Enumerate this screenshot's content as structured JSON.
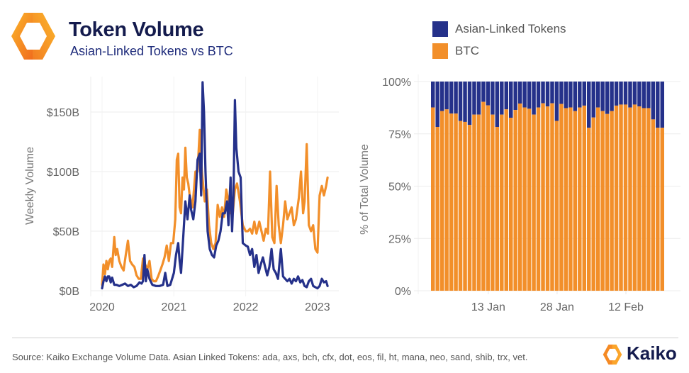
{
  "header": {
    "title": "Token Volume",
    "subtitle": "Asian-Linked Tokens vs BTC"
  },
  "legend": {
    "items": [
      {
        "label": "Asian-Linked Tokens",
        "color": "#25318a"
      },
      {
        "label": "BTC",
        "color": "#f28f2a"
      }
    ]
  },
  "footer": {
    "source": "Source: Kaiko Exchange Volume Data. Asian Linked Tokens: ada, axs, bch, cfx, dot, eos, fil, ht, mana, neo, sand, shib, trx, vet.",
    "brand": "Kaiko"
  },
  "chart_data": [
    {
      "type": "line",
      "title": "",
      "xlabel": "",
      "ylabel": "Weekly Volume",
      "xlim": [
        2019.95,
        2023.25
      ],
      "ylim": [
        0,
        180
      ],
      "x_ticks": [
        2020,
        2021,
        2022,
        2023
      ],
      "x_tick_labels": [
        "2020",
        "2021",
        "2022",
        "2023"
      ],
      "y_ticks": [
        0,
        50,
        100,
        150
      ],
      "y_tick_labels": [
        "$0B",
        "$50B",
        "$100B",
        "$150B"
      ],
      "grid": true,
      "series": [
        {
          "name": "BTC",
          "color": "#f28f2a",
          "x": [
            2020.0,
            2020.02,
            2020.04,
            2020.06,
            2020.08,
            2020.1,
            2020.12,
            2020.14,
            2020.17,
            2020.19,
            2020.21,
            2020.24,
            2020.27,
            2020.3,
            2020.33,
            2020.36,
            2020.39,
            2020.42,
            2020.45,
            2020.48,
            2020.51,
            2020.54,
            2020.57,
            2020.6,
            2020.63,
            2020.66,
            2020.69,
            2020.72,
            2020.75,
            2020.78,
            2020.81,
            2020.84,
            2020.87,
            2020.9,
            2020.93,
            2020.96,
            2020.99,
            2021.02,
            2021.04,
            2021.06,
            2021.08,
            2021.1,
            2021.12,
            2021.14,
            2021.16,
            2021.18,
            2021.2,
            2021.22,
            2021.26,
            2021.3,
            2021.33,
            2021.36,
            2021.39,
            2021.43,
            2021.46,
            2021.49,
            2021.52,
            2021.55,
            2021.58,
            2021.61,
            2021.64,
            2021.67,
            2021.7,
            2021.73,
            2021.76,
            2021.79,
            2021.82,
            2021.85,
            2021.88,
            2021.92,
            2021.96,
            2022.0,
            2022.03,
            2022.06,
            2022.09,
            2022.12,
            2022.15,
            2022.19,
            2022.22,
            2022.25,
            2022.28,
            2022.31,
            2022.34,
            2022.37,
            2022.4,
            2022.43,
            2022.46,
            2022.49,
            2022.52,
            2022.55,
            2022.58,
            2022.61,
            2022.64,
            2022.67,
            2022.7,
            2022.74,
            2022.77,
            2022.8,
            2022.82,
            2022.85,
            2022.88,
            2022.91,
            2022.94,
            2022.97,
            2023.0,
            2023.03,
            2023.06,
            2023.09,
            2023.12,
            2023.14
          ],
          "values": [
            5,
            22,
            14,
            25,
            18,
            25,
            27,
            20,
            45,
            30,
            35,
            25,
            20,
            17,
            30,
            42,
            25,
            22,
            20,
            13,
            10,
            10,
            27,
            22,
            18,
            25,
            10,
            8,
            8,
            12,
            17,
            22,
            28,
            38,
            25,
            40,
            40,
            60,
            110,
            115,
            70,
            65,
            95,
            85,
            120,
            95,
            90,
            80,
            70,
            100,
            100,
            135,
            100,
            75,
            85,
            55,
            40,
            35,
            40,
            72,
            62,
            70,
            62,
            85,
            75,
            65,
            65,
            85,
            90,
            75,
            55,
            50,
            50,
            52,
            48,
            58,
            48,
            58,
            50,
            42,
            52,
            48,
            100,
            45,
            40,
            88,
            55,
            40,
            55,
            75,
            60,
            65,
            70,
            55,
            60,
            78,
            100,
            65,
            75,
            123,
            55,
            50,
            55,
            35,
            32,
            80,
            88,
            80,
            88,
            95
          ]
        },
        {
          "name": "Asian-Linked Tokens",
          "color": "#25318a",
          "x": [
            2020.0,
            2020.02,
            2020.04,
            2020.06,
            2020.08,
            2020.1,
            2020.12,
            2020.14,
            2020.17,
            2020.2,
            2020.24,
            2020.28,
            2020.32,
            2020.36,
            2020.4,
            2020.44,
            2020.48,
            2020.52,
            2020.55,
            2020.57,
            2020.59,
            2020.61,
            2020.63,
            2020.66,
            2020.7,
            2020.75,
            2020.8,
            2020.85,
            2020.88,
            2020.91,
            2020.95,
            2021.0,
            2021.03,
            2021.06,
            2021.08,
            2021.1,
            2021.13,
            2021.16,
            2021.19,
            2021.22,
            2021.24,
            2021.27,
            2021.3,
            2021.33,
            2021.36,
            2021.38,
            2021.4,
            2021.42,
            2021.44,
            2021.47,
            2021.5,
            2021.53,
            2021.56,
            2021.59,
            2021.62,
            2021.65,
            2021.68,
            2021.71,
            2021.74,
            2021.76,
            2021.79,
            2021.81,
            2021.83,
            2021.85,
            2021.87,
            2021.9,
            2021.93,
            2021.96,
            2022.0,
            2022.03,
            2022.06,
            2022.09,
            2022.12,
            2022.15,
            2022.18,
            2022.21,
            2022.24,
            2022.27,
            2022.3,
            2022.33,
            2022.36,
            2022.39,
            2022.42,
            2022.45,
            2022.49,
            2022.52,
            2022.55,
            2022.58,
            2022.61,
            2022.64,
            2022.67,
            2022.7,
            2022.73,
            2022.76,
            2022.79,
            2022.82,
            2022.85,
            2022.88,
            2022.91,
            2022.94,
            2022.97,
            2023.0,
            2023.03,
            2023.06,
            2023.09,
            2023.12,
            2023.14
          ],
          "values": [
            2,
            8,
            12,
            8,
            12,
            12,
            7,
            11,
            5,
            5,
            4,
            5,
            6,
            4,
            5,
            3,
            4,
            7,
            6,
            8,
            30,
            8,
            18,
            10,
            5,
            4,
            4,
            5,
            15,
            4,
            5,
            15,
            30,
            40,
            25,
            15,
            45,
            75,
            60,
            80,
            68,
            60,
            75,
            110,
            115,
            80,
            175,
            150,
            100,
            50,
            35,
            30,
            28,
            38,
            42,
            50,
            65,
            65,
            75,
            55,
            95,
            50,
            80,
            160,
            120,
            100,
            95,
            40,
            38,
            37,
            30,
            35,
            20,
            30,
            15,
            22,
            28,
            20,
            13,
            20,
            35,
            18,
            15,
            10,
            35,
            12,
            10,
            8,
            10,
            6,
            10,
            8,
            12,
            7,
            9,
            4,
            3,
            8,
            10,
            4,
            3,
            2,
            4,
            10,
            7,
            8,
            4
          ]
        }
      ]
    },
    {
      "type": "bar",
      "stacked": true,
      "normalized": true,
      "title": "",
      "xlabel": "",
      "ylabel": "% of Total Volume",
      "ylim": [
        0,
        100
      ],
      "y_ticks": [
        0,
        25,
        50,
        75,
        100
      ],
      "y_tick_labels": [
        "0%",
        "25%",
        "50%",
        "75%",
        "100%"
      ],
      "x_tick_labels": [
        {
          "label": "13 Jan",
          "index": 12
        },
        {
          "label": "28 Jan",
          "index": 27
        },
        {
          "label": "12 Feb",
          "index": 42
        }
      ],
      "grid": true,
      "bar_count": 51,
      "series": [
        {
          "name": "BTC",
          "color": "#f28f2a",
          "values": [
            87.6,
            78.3,
            85.9,
            86.7,
            84.7,
            84.7,
            81.2,
            80.7,
            79.3,
            84.2,
            84.2,
            90.3,
            88.6,
            84.2,
            78.3,
            84.2,
            86.7,
            82.7,
            86.4,
            89.5,
            87.6,
            87.0,
            84.2,
            87.6,
            89.6,
            88.1,
            89.6,
            81.2,
            89.3,
            87.3,
            87.6,
            85.9,
            87.6,
            88.5,
            77.9,
            82.8,
            87.6,
            85.9,
            84.5,
            85.9,
            88.5,
            89.0,
            89.0,
            87.6,
            89.0,
            88.1,
            87.3,
            87.3,
            81.9,
            77.9,
            77.9
          ]
        },
        {
          "name": "Asian-Linked Tokens",
          "color": "#25318a",
          "values": [
            12.4,
            21.7,
            14.1,
            13.3,
            15.3,
            15.3,
            18.8,
            19.3,
            20.7,
            15.8,
            15.8,
            9.7,
            11.4,
            15.8,
            21.7,
            15.8,
            13.3,
            17.3,
            13.6,
            10.5,
            12.4,
            13.0,
            15.8,
            12.4,
            10.4,
            11.9,
            10.4,
            18.8,
            10.7,
            12.7,
            12.4,
            14.1,
            12.4,
            11.5,
            22.1,
            17.2,
            12.4,
            14.1,
            15.5,
            14.1,
            11.5,
            11.0,
            11.0,
            12.4,
            11.0,
            11.9,
            12.7,
            12.7,
            18.1,
            22.1,
            22.1
          ]
        }
      ]
    }
  ]
}
